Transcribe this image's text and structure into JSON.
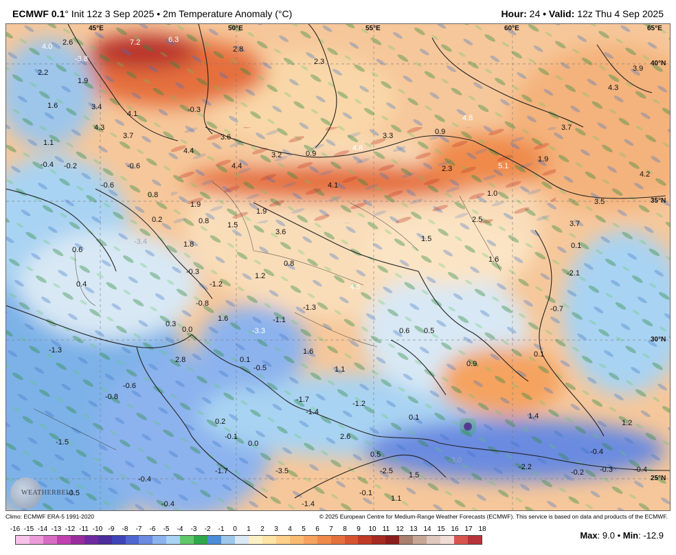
{
  "header": {
    "model": "ECMWF 0.1",
    "init_text": "° Init 12z 3 Sep 2025 • 2m Temperature Anomaly (°C)",
    "hour_label": "Hour:",
    "hour_value": "24",
    "valid_label": "• Valid:",
    "valid_value": "12z Thu 4 Sep 2025"
  },
  "coords": {
    "lon": [
      "45°E",
      "50°E",
      "55°E",
      "60°E",
      "65°E"
    ],
    "lat": [
      "40°N",
      "35°N",
      "30°N",
      "25°N"
    ]
  },
  "anomaly_labels": [
    "4.0",
    "2.6",
    "7.2",
    "6.3",
    "2.8",
    "2.3",
    "3.9",
    "-3.8",
    "2.2",
    "1.9",
    "4.3",
    "1.6",
    "3.4",
    "-0.3",
    "4.1",
    "4.3",
    "3.7",
    "3.6",
    "1.1",
    "4.4",
    "3.2",
    "0.9",
    "4.8",
    "3.3",
    "0.9",
    "4.8",
    "3.7",
    "-0.4",
    "-0.2",
    "-0.6",
    "4.4",
    "5.1",
    "1.9",
    "2.3",
    "4.2",
    "-0.6",
    "4.1",
    "1.0",
    "0.8",
    "3.5",
    "1.9",
    "0.2",
    "0.8",
    "1.5",
    "1.9",
    "2.5",
    "3.7",
    "3.6",
    "1.5",
    "0.1",
    "-3.4",
    "1.8",
    "0.6",
    "0.8",
    "1.6",
    "0.4",
    "-0.3",
    "1.2",
    "-2.1",
    "-1.2",
    "4.6",
    "-0.8",
    "-1.3",
    "-0.7",
    "1.6",
    "-1.1",
    "0.3",
    "0.0",
    "-3.3",
    "0.6",
    "0.5",
    "-1.3",
    "2.8",
    "0.1",
    "-0.5",
    "1.6",
    "0.1",
    "1.1",
    "0.9",
    "-0.6",
    "-0.8",
    "-1.7",
    "-1.2",
    "1.4",
    "-1.4",
    "0.2",
    "0.1",
    "1.2",
    "-1.5",
    "-0.1",
    "0.0",
    "2.6",
    "-3.0",
    "0.5",
    "-2.2",
    "-0.4",
    "-1.7",
    "-3.5",
    "-2.5",
    "1.5",
    "-0.2",
    "-0.3",
    "-0.4",
    "-0.4",
    "-0.5",
    "-0.4",
    "-1.4",
    "-0.1",
    "1.1"
  ],
  "logo_text": "WEATHERBELL",
  "footer": {
    "climo": "Climo: ECMWF ERA-5 1991-2020",
    "copyright": "© 2025 European Centre for Medium-Range Weather Forecasts (ECMWF). This service is based on data and products of the ECMWF."
  },
  "legend": {
    "ticks": [
      "-16",
      "-15",
      "-14",
      "-13",
      "-12",
      "-11",
      "-10",
      "-9",
      "-8",
      "-7",
      "-6",
      "-5",
      "-4",
      "-3",
      "-2",
      "-1",
      "0",
      "1",
      "2",
      "3",
      "4",
      "5",
      "6",
      "7",
      "8",
      "9",
      "10",
      "11",
      "12",
      "13",
      "14",
      "15",
      "16",
      "17",
      "18"
    ],
    "colors": [
      "#f7c2ea",
      "#ec9bd8",
      "#d66cc3",
      "#c040b0",
      "#9a2c9e",
      "#6f2aa0",
      "#4b2d9b",
      "#3f45b8",
      "#5067d0",
      "#6b8be0",
      "#8cb3ee",
      "#a9d3f2",
      "#5fc86a",
      "#2ea84a",
      "#4a8cd6",
      "#9ec6ea",
      "#d8e8f4",
      "#fbf0c4",
      "#fde3a4",
      "#fcd08a",
      "#f9bb72",
      "#f5a35e",
      "#ef8a4b",
      "#e5703c",
      "#d65530",
      "#c03a26",
      "#a52a22",
      "#8a1e1e",
      "#a97f6e",
      "#c6a697",
      "#dfc7bd",
      "#f0dcd4",
      "#d7554e",
      "#b8323a"
    ]
  },
  "stats": {
    "max_label": "Max",
    "max_value": "9.0",
    "min_label": "Min",
    "min_value": "-12.9"
  }
}
